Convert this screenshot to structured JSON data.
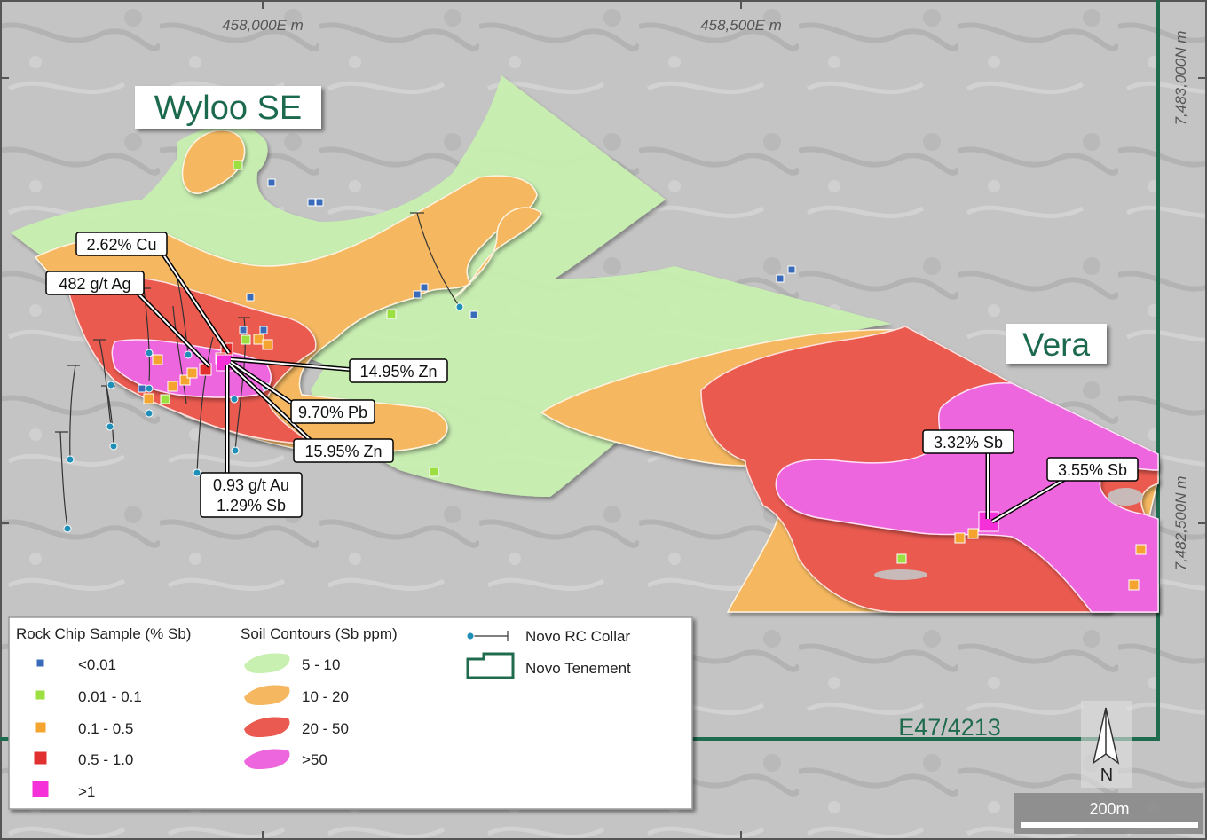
{
  "map": {
    "easting_labels": [
      "458,000E m",
      "458,500E m"
    ],
    "northing_labels": [
      "7,483,000N m",
      "7,482,500N m"
    ],
    "prospects": {
      "wyloo": "Wyloo SE",
      "vera": "Vera"
    },
    "tenement_id": "E47/4213",
    "callouts": {
      "cu": "2.62% Cu",
      "ag": "482 g/t Ag",
      "zn1": "14.95% Zn",
      "pb": "9.70% Pb",
      "zn2": "15.95% Zn",
      "au_line1": "0.93 g/t Au",
      "au_line2": "1.29% Sb",
      "sb1": "3.32% Sb",
      "sb2": "3.55% Sb"
    },
    "north_label": "N",
    "scale_label": "200m"
  },
  "legend": {
    "rock_title": "Rock Chip Sample (% Sb)",
    "rock_items": [
      {
        "label": "<0.01",
        "color": "#3a6bb8"
      },
      {
        "label": "0.01 - 0.1",
        "color": "#9be040"
      },
      {
        "label": "0.1 - 0.5",
        "color": "#f5a430"
      },
      {
        "label": "0.5 - 1.0",
        "color": "#e03030"
      },
      {
        "label": ">1",
        "color": "#f530d8"
      }
    ],
    "soil_title": "Soil Contours (Sb ppm)",
    "soil_items": [
      {
        "label": "5 - 10",
        "color": "#c8f0b0"
      },
      {
        "label": "10 - 20",
        "color": "#f5b860"
      },
      {
        "label": "20 - 50",
        "color": "#ea5a50"
      },
      {
        "label": ">50",
        "color": "#ee66dd"
      }
    ],
    "collar_label": "Novo RC Collar",
    "tenement_label": "Novo Tenement"
  }
}
